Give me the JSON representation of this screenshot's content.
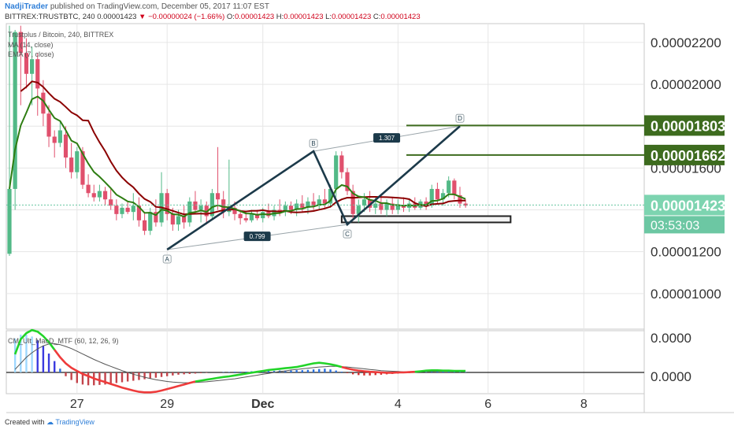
{
  "header": {
    "author": "NadjiTrader",
    "published": "published on TradingView.com, December 05, 2017 11:07 EST"
  },
  "ohlc_line": {
    "symbol": "BITTREX:TRUSTBTC, 240",
    "last": "0.00001423",
    "change": "▼ −0.00000024 (−1.66%)",
    "o_label": "O:",
    "o_value": "0.00001423",
    "h_label": "H:",
    "h_value": "0.00001423",
    "l_label": "L:",
    "l_value": "0.00001423",
    "c_label": "C:",
    "c_value": "0.00001423"
  },
  "legends": {
    "main_title": "Trustplus / Bitcoin, 240, BITTREX",
    "ma": "MA (14, close)",
    "ema": "EMA (7, close)",
    "macd": "CM_Ult_MacD_MTF (60, 12, 26, 9)"
  },
  "footer": {
    "created_with": "Created with",
    "brand": "TradingView"
  },
  "colors": {
    "up": "#52b987",
    "down": "#e0506d",
    "ma": "#8b0000",
    "ema": "#2e7d12",
    "pattern": "#1c3a4a",
    "level": "#3d6b1e",
    "current": "#66c5a0",
    "macd_fast": "#22d429",
    "macd_slow": "#ee3b3b",
    "signal": "#555555"
  },
  "chart_data": [
    {
      "type": "candlestick",
      "symbol": "BITTREX:TRUSTBTC",
      "interval": "240",
      "x_ticks": [
        "27",
        "29",
        "Dec",
        "4",
        "6",
        "8"
      ],
      "y_ticks": [
        "0.00002200",
        "0.00002000",
        "0.00001600",
        "0.00001200",
        "0.00001000"
      ],
      "ylim": [
        8.3e-06,
        2.29e-05
      ],
      "candles": [
        {
          "o": 1.19e-05,
          "h": 2.28e-05,
          "l": 1.18e-05,
          "c": 1.5e-05
        },
        {
          "o": 1.5e-05,
          "h": 2.26e-05,
          "l": 1.4e-05,
          "c": 2.25e-05
        },
        {
          "o": 2.25e-05,
          "h": 2.28e-05,
          "l": 1.9e-05,
          "c": 2.15e-05
        },
        {
          "o": 2.15e-05,
          "h": 2.22e-05,
          "l": 1.98e-05,
          "c": 2.05e-05
        },
        {
          "o": 2.05e-05,
          "h": 2.18e-05,
          "l": 1.9e-05,
          "c": 2.12e-05
        },
        {
          "o": 2.12e-05,
          "h": 2.15e-05,
          "l": 1.85e-05,
          "c": 1.98e-05
        },
        {
          "o": 1.96e-05,
          "h": 2.02e-05,
          "l": 1.8e-05,
          "c": 1.86e-05
        },
        {
          "o": 1.86e-05,
          "h": 1.9e-05,
          "l": 1.7e-05,
          "c": 1.75e-05
        },
        {
          "o": 1.75e-05,
          "h": 1.78e-05,
          "l": 1.65e-05,
          "c": 1.72e-05
        },
        {
          "o": 1.72e-05,
          "h": 1.82e-05,
          "l": 1.7e-05,
          "c": 1.78e-05
        },
        {
          "o": 1.76e-05,
          "h": 1.8e-05,
          "l": 1.6e-05,
          "c": 1.65e-05
        },
        {
          "o": 1.65e-05,
          "h": 1.72e-05,
          "l": 1.55e-05,
          "c": 1.58e-05
        },
        {
          "o": 1.58e-05,
          "h": 1.7e-05,
          "l": 1.55e-05,
          "c": 1.68e-05
        },
        {
          "o": 1.68e-05,
          "h": 1.7e-05,
          "l": 1.5e-05,
          "c": 1.52e-05
        },
        {
          "o": 1.52e-05,
          "h": 1.57e-05,
          "l": 1.46e-05,
          "c": 1.48e-05
        },
        {
          "o": 1.48e-05,
          "h": 1.52e-05,
          "l": 1.44e-05,
          "c": 1.46e-05
        },
        {
          "o": 1.46e-05,
          "h": 1.52e-05,
          "l": 1.44e-05,
          "c": 1.49e-05
        },
        {
          "o": 1.49e-05,
          "h": 1.51e-05,
          "l": 1.42e-05,
          "c": 1.45e-05
        },
        {
          "o": 1.45e-05,
          "h": 1.5e-05,
          "l": 1.4e-05,
          "c": 1.42e-05
        },
        {
          "o": 1.42e-05,
          "h": 1.45e-05,
          "l": 1.35e-05,
          "c": 1.38e-05
        },
        {
          "o": 1.38e-05,
          "h": 1.43e-05,
          "l": 1.36e-05,
          "c": 1.41e-05
        },
        {
          "o": 1.41e-05,
          "h": 1.44e-05,
          "l": 1.38e-05,
          "c": 1.39e-05
        },
        {
          "o": 1.39e-05,
          "h": 1.48e-05,
          "l": 1.35e-05,
          "c": 1.42e-05
        },
        {
          "o": 1.42e-05,
          "h": 1.46e-05,
          "l": 1.32e-05,
          "c": 1.35e-05
        },
        {
          "o": 1.35e-05,
          "h": 1.39e-05,
          "l": 1.28e-05,
          "c": 1.3e-05
        },
        {
          "o": 1.3e-05,
          "h": 1.41e-05,
          "l": 1.28e-05,
          "c": 1.39e-05
        },
        {
          "o": 1.39e-05,
          "h": 1.45e-05,
          "l": 1.32e-05,
          "c": 1.34e-05
        },
        {
          "o": 1.34e-05,
          "h": 1.58e-05,
          "l": 1.32e-05,
          "c": 1.48e-05
        },
        {
          "o": 1.48e-05,
          "h": 1.5e-05,
          "l": 1.35e-05,
          "c": 1.38e-05
        },
        {
          "o": 1.38e-05,
          "h": 1.41e-05,
          "l": 1.3e-05,
          "c": 1.33e-05
        },
        {
          "o": 1.33e-05,
          "h": 1.4e-05,
          "l": 1.3e-05,
          "c": 1.37e-05
        },
        {
          "o": 1.37e-05,
          "h": 1.42e-05,
          "l": 1.31e-05,
          "c": 1.34e-05
        },
        {
          "o": 1.34e-05,
          "h": 1.46e-05,
          "l": 1.32e-05,
          "c": 1.44e-05
        },
        {
          "o": 1.44e-05,
          "h": 1.49e-05,
          "l": 1.38e-05,
          "c": 1.4e-05
        },
        {
          "o": 1.4e-05,
          "h": 1.45e-05,
          "l": 1.34e-05,
          "c": 1.42e-05
        },
        {
          "o": 1.42e-05,
          "h": 1.44e-05,
          "l": 1.33e-05,
          "c": 1.37e-05
        },
        {
          "o": 1.37e-05,
          "h": 1.5e-05,
          "l": 1.35e-05,
          "c": 1.48e-05
        },
        {
          "o": 1.48e-05,
          "h": 1.7e-05,
          "l": 1.4e-05,
          "c": 1.45e-05
        },
        {
          "o": 1.45e-05,
          "h": 1.49e-05,
          "l": 1.36e-05,
          "c": 1.39e-05
        },
        {
          "o": 1.39e-05,
          "h": 1.64e-05,
          "l": 1.37e-05,
          "c": 1.41e-05
        },
        {
          "o": 1.41e-05,
          "h": 1.44e-05,
          "l": 1.35e-05,
          "c": 1.38e-05
        },
        {
          "o": 1.38e-05,
          "h": 1.4e-05,
          "l": 1.33e-05,
          "c": 1.36e-05
        },
        {
          "o": 1.36e-05,
          "h": 1.39e-05,
          "l": 1.34e-05,
          "c": 1.35e-05
        },
        {
          "o": 1.35e-05,
          "h": 1.4e-05,
          "l": 1.34e-05,
          "c": 1.38e-05
        },
        {
          "o": 1.38e-05,
          "h": 1.4e-05,
          "l": 1.35e-05,
          "c": 1.36e-05
        },
        {
          "o": 1.36e-05,
          "h": 1.41e-05,
          "l": 1.34e-05,
          "c": 1.39e-05
        },
        {
          "o": 1.39e-05,
          "h": 1.43e-05,
          "l": 1.36e-05,
          "c": 1.37e-05
        },
        {
          "o": 1.37e-05,
          "h": 1.42e-05,
          "l": 1.35e-05,
          "c": 1.4e-05
        },
        {
          "o": 1.4e-05,
          "h": 1.45e-05,
          "l": 1.37e-05,
          "c": 1.39e-05
        },
        {
          "o": 1.39e-05,
          "h": 1.44e-05,
          "l": 1.37e-05,
          "c": 1.42e-05
        },
        {
          "o": 1.42e-05,
          "h": 1.44e-05,
          "l": 1.38e-05,
          "c": 1.4e-05
        },
        {
          "o": 1.4e-05,
          "h": 1.45e-05,
          "l": 1.37e-05,
          "c": 1.43e-05
        },
        {
          "o": 1.43e-05,
          "h": 1.47e-05,
          "l": 1.39e-05,
          "c": 1.41e-05
        },
        {
          "o": 1.41e-05,
          "h": 1.46e-05,
          "l": 1.38e-05,
          "c": 1.44e-05
        },
        {
          "o": 1.44e-05,
          "h": 1.48e-05,
          "l": 1.4e-05,
          "c": 1.42e-05
        },
        {
          "o": 1.42e-05,
          "h": 1.47e-05,
          "l": 1.4e-05,
          "c": 1.45e-05
        },
        {
          "o": 1.45e-05,
          "h": 1.5e-05,
          "l": 1.41e-05,
          "c": 1.43e-05
        },
        {
          "o": 1.43e-05,
          "h": 1.52e-05,
          "l": 1.41e-05,
          "c": 1.5e-05
        },
        {
          "o": 1.5e-05,
          "h": 1.68e-05,
          "l": 1.46e-05,
          "c": 1.66e-05
        },
        {
          "o": 1.66e-05,
          "h": 1.68e-05,
          "l": 1.55e-05,
          "c": 1.58e-05
        },
        {
          "o": 1.58e-05,
          "h": 1.6e-05,
          "l": 1.47e-05,
          "c": 1.49e-05
        },
        {
          "o": 1.49e-05,
          "h": 1.52e-05,
          "l": 1.36e-05,
          "c": 1.38e-05
        },
        {
          "o": 1.38e-05,
          "h": 1.45e-05,
          "l": 1.34e-05,
          "c": 1.42e-05
        },
        {
          "o": 1.42e-05,
          "h": 1.48e-05,
          "l": 1.39e-05,
          "c": 1.45e-05
        },
        {
          "o": 1.45e-05,
          "h": 1.49e-05,
          "l": 1.39e-05,
          "c": 1.41e-05
        },
        {
          "o": 1.41e-05,
          "h": 1.46e-05,
          "l": 1.38e-05,
          "c": 1.43e-05
        },
        {
          "o": 1.43e-05,
          "h": 1.47e-05,
          "l": 1.38e-05,
          "c": 1.4e-05
        },
        {
          "o": 1.4e-05,
          "h": 1.45e-05,
          "l": 1.37e-05,
          "c": 1.43e-05
        },
        {
          "o": 1.43e-05,
          "h": 1.46e-05,
          "l": 1.38e-05,
          "c": 1.4e-05
        },
        {
          "o": 1.4e-05,
          "h": 1.45e-05,
          "l": 1.38e-05,
          "c": 1.42e-05
        },
        {
          "o": 1.42e-05,
          "h": 1.46e-05,
          "l": 1.39e-05,
          "c": 1.41e-05
        },
        {
          "o": 1.41e-05,
          "h": 1.45e-05,
          "l": 1.39e-05,
          "c": 1.43e-05
        },
        {
          "o": 1.43e-05,
          "h": 1.46e-05,
          "l": 1.4e-05,
          "c": 1.41e-05
        },
        {
          "o": 1.41e-05,
          "h": 1.45e-05,
          "l": 1.4e-05,
          "c": 1.44e-05
        },
        {
          "o": 1.44e-05,
          "h": 1.46e-05,
          "l": 1.4e-05,
          "c": 1.42e-05
        },
        {
          "o": 1.42e-05,
          "h": 1.52e-05,
          "l": 1.41e-05,
          "c": 1.5e-05
        },
        {
          "o": 1.5e-05,
          "h": 1.53e-05,
          "l": 1.43e-05,
          "c": 1.45e-05
        },
        {
          "o": 1.45e-05,
          "h": 1.5e-05,
          "l": 1.42e-05,
          "c": 1.48e-05
        },
        {
          "o": 1.48e-05,
          "h": 1.56e-05,
          "l": 1.46e-05,
          "c": 1.54e-05
        },
        {
          "o": 1.54e-05,
          "h": 1.55e-05,
          "l": 1.45e-05,
          "c": 1.47e-05
        },
        {
          "o": 1.47e-05,
          "h": 1.51e-05,
          "l": 1.41e-05,
          "c": 1.43e-05
        },
        {
          "o": 1.43e-05,
          "h": 1.45e-05,
          "l": 1.41e-05,
          "c": 1.42e-05
        }
      ],
      "ma_label": "MA (14, close)",
      "ema_label": "EMA (7, close)",
      "current_price": {
        "value": 1.423e-05,
        "label": "0.00001423",
        "countdown": "03:53:03"
      },
      "levels": [
        {
          "value": 1.803e-05,
          "label": "0.00001803"
        },
        {
          "value": 1.662e-05,
          "label": "0.00001662"
        }
      ],
      "harmonic_pattern": {
        "points": [
          {
            "name": "A",
            "bar": 28,
            "price": 1.21e-05
          },
          {
            "name": "B",
            "bar": 54,
            "price": 1.68e-05
          },
          {
            "name": "C",
            "bar": 60,
            "price": 1.33e-05
          },
          {
            "name": "D",
            "bar": 80,
            "price": 1.8e-05
          }
        ],
        "ratios": [
          {
            "label": "0.799",
            "between": [
              "A",
              "C"
            ]
          },
          {
            "label": "1.307",
            "between": [
              "B",
              "D"
            ]
          }
        ]
      },
      "zone_box": {
        "bar_start": 59,
        "bar_end": 89,
        "price_top": 1.37e-05,
        "price_bottom": 1.34e-05
      }
    },
    {
      "type": "bar",
      "title": "CM_Ult_MacD_MTF (60, 12, 26, 9)",
      "y_ticks": [
        "0.0000",
        "0.0000"
      ],
      "histogram": [
        0.9,
        1.0,
        1.0,
        0.95,
        0.85,
        0.7,
        0.5,
        0.3,
        0.1,
        -0.1,
        -0.2,
        -0.28,
        -0.32,
        -0.34,
        -0.34,
        -0.33,
        -0.32,
        -0.3,
        -0.28,
        -0.26,
        -0.24,
        -0.22,
        -0.2,
        -0.18,
        -0.16,
        -0.14,
        -0.12,
        -0.1,
        -0.08,
        -0.06,
        -0.05,
        -0.04,
        -0.03,
        -0.02,
        -0.01,
        0.0,
        0.0,
        0.01,
        0.01,
        0.02,
        0.02,
        0.02,
        0.03,
        0.03,
        0.03,
        0.04,
        0.04,
        0.05,
        0.05,
        0.05,
        0.06,
        0.06,
        0.07,
        0.08,
        0.09,
        0.1,
        0.08,
        0.05,
        0.02,
        -0.02,
        -0.05,
        -0.07,
        -0.08,
        -0.08,
        -0.07,
        -0.06,
        -0.05,
        -0.04,
        -0.03,
        -0.02,
        -0.02,
        -0.01,
        0.0,
        0.01,
        0.02,
        0.03,
        0.04,
        0.04,
        0.03,
        0.02,
        0.01
      ],
      "macd_line": [
        0.6,
        1.1,
        1.3,
        1.4,
        1.35,
        1.2,
        1.0,
        0.75,
        0.5,
        0.3,
        0.15,
        0.05,
        -0.05,
        -0.12,
        -0.2,
        -0.26,
        -0.32,
        -0.38,
        -0.44,
        -0.5,
        -0.55,
        -0.6,
        -0.64,
        -0.66,
        -0.66,
        -0.64,
        -0.6,
        -0.55,
        -0.5,
        -0.45,
        -0.4,
        -0.35,
        -0.3,
        -0.27,
        -0.24,
        -0.21,
        -0.18,
        -0.15,
        -0.13,
        -0.1,
        -0.07,
        -0.04,
        -0.01,
        0.02,
        0.05,
        0.08,
        0.1,
        0.12,
        0.14,
        0.16,
        0.18,
        0.22,
        0.26,
        0.3,
        0.32,
        0.3,
        0.27,
        0.23,
        0.18,
        0.13,
        0.09,
        0.06,
        0.04,
        0.02,
        0.01,
        0.0,
        -0.01,
        -0.01,
        0.0,
        0.0,
        0.01,
        0.02,
        0.04,
        0.06,
        0.07,
        0.07,
        0.06,
        0.06,
        0.05,
        0.05,
        0.05
      ],
      "signal_line": [
        0.1,
        0.3,
        0.5,
        0.65,
        0.78,
        0.88,
        0.94,
        0.95,
        0.92,
        0.86,
        0.79,
        0.7,
        0.61,
        0.52,
        0.43,
        0.35,
        0.27,
        0.2,
        0.13,
        0.06,
        0.0,
        -0.06,
        -0.11,
        -0.16,
        -0.2,
        -0.24,
        -0.27,
        -0.3,
        -0.32,
        -0.33,
        -0.34,
        -0.34,
        -0.33,
        -0.32,
        -0.31,
        -0.29,
        -0.27,
        -0.25,
        -0.23,
        -0.21,
        -0.18,
        -0.15,
        -0.12,
        -0.09,
        -0.06,
        -0.03,
        0.0,
        0.03,
        0.05,
        0.08,
        0.1,
        0.12,
        0.14,
        0.16,
        0.18,
        0.19,
        0.2,
        0.2,
        0.19,
        0.18,
        0.16,
        0.14,
        0.12,
        0.1,
        0.08,
        0.06,
        0.05,
        0.04,
        0.03,
        0.02,
        0.02,
        0.02,
        0.02,
        0.03,
        0.03,
        0.04,
        0.04,
        0.04,
        0.04,
        0.04,
        0.04
      ]
    }
  ]
}
